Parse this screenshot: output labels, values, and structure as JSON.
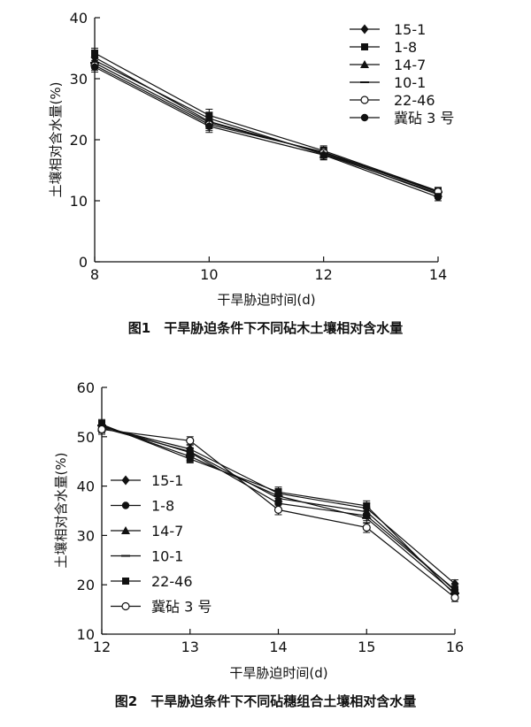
{
  "chart_data": [
    {
      "type": "line",
      "caption": "图1　干旱胁迫条件下不同砧木土壤相对含水量",
      "xlabel": "干旱胁迫时间(d)",
      "ylabel": "土壤相对含水量(%)",
      "xlim": [
        8,
        14
      ],
      "ylim": [
        0,
        40
      ],
      "xticks": [
        8,
        10,
        12,
        14
      ],
      "yticks": [
        0,
        10,
        20,
        30,
        40
      ],
      "grid": false,
      "legend_position": "top-right",
      "x": [
        8,
        10,
        12,
        14
      ],
      "series": [
        {
          "name": "15-1",
          "marker": "diamond",
          "values": [
            33.5,
            23.0,
            17.8,
            11.0
          ],
          "err": [
            0.8,
            1.0,
            0.8,
            0.6
          ]
        },
        {
          "name": "1-8",
          "marker": "square",
          "values": [
            34.2,
            24.0,
            18.2,
            11.6
          ],
          "err": [
            0.8,
            1.0,
            0.8,
            0.6
          ]
        },
        {
          "name": "14-7",
          "marker": "triangle",
          "values": [
            33.0,
            23.5,
            17.6,
            11.2
          ],
          "err": [
            0.8,
            1.0,
            0.8,
            0.6
          ]
        },
        {
          "name": "10-1",
          "marker": "dash",
          "values": [
            32.6,
            22.8,
            17.9,
            11.4
          ],
          "err": [
            0.8,
            1.0,
            0.8,
            0.6
          ]
        },
        {
          "name": "22-46",
          "marker": "open-circle",
          "values": [
            32.2,
            22.5,
            18.0,
            11.5
          ],
          "err": [
            0.8,
            1.0,
            0.8,
            0.6
          ]
        },
        {
          "name": "冀砧 3 号",
          "marker": "filled-circle",
          "values": [
            31.9,
            22.2,
            17.5,
            10.6
          ],
          "err": [
            0.8,
            1.0,
            0.8,
            0.6
          ]
        }
      ]
    },
    {
      "type": "line",
      "caption": "图2　干旱胁迫条件下不同砧穗组合土壤相对含水量",
      "xlabel": "干旱胁迫时间(d)",
      "ylabel": "土壤相对含水量(%)",
      "xlim": [
        12,
        16
      ],
      "ylim": [
        10,
        60
      ],
      "xticks": [
        12,
        13,
        14,
        15,
        16
      ],
      "yticks": [
        10,
        20,
        30,
        40,
        50,
        60
      ],
      "grid": false,
      "legend_position": "bottom-left",
      "x": [
        12,
        13,
        14,
        15,
        16
      ],
      "series": [
        {
          "name": "15-1",
          "marker": "diamond",
          "values": [
            52.0,
            47.5,
            38.5,
            35.5,
            20.2
          ],
          "err": [
            1.0,
            0.8,
            1.0,
            1.0,
            0.8
          ]
        },
        {
          "name": "1-8",
          "marker": "filled-circle",
          "values": [
            52.2,
            46.8,
            36.5,
            34.0,
            19.0
          ],
          "err": [
            1.0,
            0.8,
            1.0,
            1.0,
            0.8
          ]
        },
        {
          "name": "14-7",
          "marker": "triangle",
          "values": [
            51.8,
            47.0,
            37.5,
            34.8,
            18.8
          ],
          "err": [
            1.0,
            0.8,
            1.0,
            1.0,
            0.8
          ]
        },
        {
          "name": "10-1",
          "marker": "dash",
          "values": [
            52.3,
            46.0,
            38.0,
            33.5,
            18.3
          ],
          "err": [
            1.0,
            0.8,
            1.0,
            1.0,
            0.8
          ]
        },
        {
          "name": "22-46",
          "marker": "square",
          "values": [
            52.5,
            45.5,
            38.8,
            36.0,
            18.0
          ],
          "err": [
            1.0,
            0.8,
            1.0,
            1.0,
            0.8
          ]
        },
        {
          "name": "冀砧 3 号",
          "marker": "open-circle",
          "values": [
            51.5,
            49.2,
            35.2,
            31.6,
            17.4
          ],
          "err": [
            1.0,
            0.8,
            1.0,
            1.0,
            0.8
          ]
        }
      ]
    }
  ]
}
